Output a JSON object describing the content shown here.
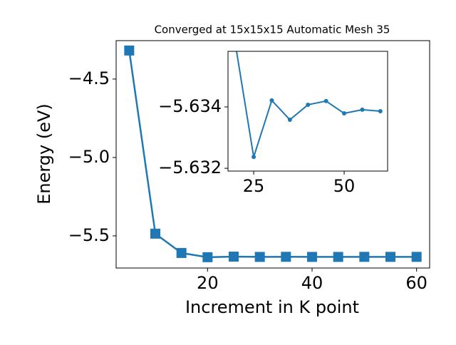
{
  "chart_data": [
    {
      "type": "line",
      "title": "Converged at 15x15x15 Automatic Mesh 35",
      "xlabel": "Increment in K point",
      "ylabel": "Energy (eV)",
      "x": [
        5,
        10,
        15,
        20,
        25,
        30,
        35,
        40,
        45,
        50,
        55,
        60
      ],
      "series": [
        {
          "color": "#1f77b4",
          "marker": "square",
          "values": [
            -4.318,
            -5.486,
            -5.609,
            -5.636,
            -5.6324,
            -5.6342,
            -5.6336,
            -5.6341,
            -5.6342,
            -5.6338,
            -5.6339,
            -5.6339
          ]
        }
      ],
      "xlim": [
        2.5,
        62.5
      ],
      "ylim": [
        -5.705,
        -4.255
      ],
      "xticks": [
        20,
        40,
        60
      ],
      "yticks": [
        {
          "value": -5.5,
          "label": "−5.5"
        },
        {
          "value": -5.0,
          "label": "−5.0"
        },
        {
          "value": -4.5,
          "label": "−4.5"
        }
      ]
    },
    {
      "type": "line",
      "x": [
        20,
        25,
        30,
        35,
        40,
        45,
        50,
        55,
        60
      ],
      "series": [
        {
          "color": "#1f77b4",
          "marker": "circle",
          "values": [
            -5.636,
            -5.63237,
            -5.63421,
            -5.63358,
            -5.63407,
            -5.63419,
            -5.63379,
            -5.63391,
            -5.63386
          ]
        }
      ],
      "xlim": [
        17.9,
        62.0
      ],
      "ylim": [
        -5.63191,
        -5.63581
      ],
      "xticks": [
        25,
        50
      ],
      "yticks": [
        {
          "value": -5.632,
          "label": "−5.632"
        },
        {
          "value": -5.634,
          "label": "−5.634"
        }
      ]
    }
  ]
}
